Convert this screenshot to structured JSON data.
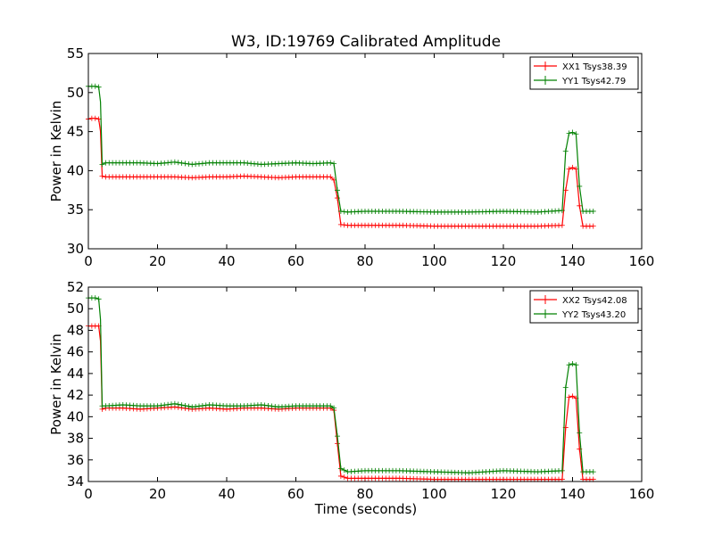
{
  "figure": {
    "title": "W3, ID:19769 Calibrated Amplitude",
    "xlabel": "Time (seconds)"
  },
  "colors": {
    "XX": "#ff0000",
    "YY": "#008000"
  },
  "chart_data": [
    {
      "type": "line",
      "title": "W3, ID:19769 Calibrated Amplitude",
      "xlabel": "",
      "ylabel": "Power in Kelvin",
      "xlim": [
        0,
        160
      ],
      "ylim": [
        30,
        55
      ],
      "xticks": [
        "0",
        "20",
        "40",
        "60",
        "80",
        "100",
        "120",
        "140",
        "160"
      ],
      "yticks": [
        "30",
        "35",
        "40",
        "45",
        "50",
        "55"
      ],
      "grid": false,
      "legend_position": "top-right",
      "series": [
        {
          "name": "XX1 Tsys38.39",
          "color": "#ff0000",
          "x": [
            0,
            1,
            2,
            3,
            3.5,
            4,
            5,
            10,
            15,
            20,
            25,
            30,
            35,
            40,
            45,
            50,
            55,
            60,
            65,
            70,
            71,
            72,
            73,
            75,
            80,
            90,
            100,
            110,
            120,
            130,
            137,
            138,
            139,
            140,
            141,
            142,
            143,
            144,
            146
          ],
          "y": [
            46.6,
            46.7,
            46.7,
            46.6,
            45.0,
            39.3,
            39.2,
            39.2,
            39.2,
            39.2,
            39.2,
            39.1,
            39.2,
            39.2,
            39.3,
            39.2,
            39.1,
            39.2,
            39.2,
            39.2,
            38.8,
            36.5,
            33.1,
            33.0,
            33.0,
            33.0,
            32.9,
            32.9,
            32.9,
            32.9,
            33.0,
            37.5,
            40.2,
            40.4,
            40.2,
            35.5,
            32.9,
            32.9,
            32.9
          ]
        },
        {
          "name": "YY1 Tsys42.79",
          "color": "#008000",
          "x": [
            0,
            1,
            2,
            3,
            3.5,
            4,
            5,
            10,
            15,
            20,
            25,
            30,
            35,
            40,
            45,
            50,
            55,
            60,
            65,
            70,
            71,
            72,
            73,
            75,
            80,
            90,
            100,
            110,
            120,
            130,
            137,
            138,
            139,
            140,
            141,
            142,
            143,
            144,
            146
          ],
          "y": [
            50.8,
            50.8,
            50.8,
            50.7,
            48.8,
            40.8,
            41.0,
            41.0,
            41.0,
            40.9,
            41.1,
            40.8,
            41.0,
            41.0,
            41.0,
            40.8,
            40.9,
            41.0,
            40.9,
            41.0,
            40.9,
            37.5,
            34.8,
            34.7,
            34.8,
            34.8,
            34.7,
            34.7,
            34.8,
            34.7,
            34.9,
            42.5,
            44.8,
            44.9,
            44.7,
            38.0,
            34.8,
            34.8,
            34.8
          ]
        }
      ]
    },
    {
      "type": "line",
      "title": "",
      "xlabel": "Time (seconds)",
      "ylabel": "Power in Kelvin",
      "xlim": [
        0,
        160
      ],
      "ylim": [
        34,
        52
      ],
      "xticks": [
        "0",
        "20",
        "40",
        "60",
        "80",
        "100",
        "120",
        "140",
        "160"
      ],
      "yticks": [
        "34",
        "36",
        "38",
        "40",
        "42",
        "44",
        "46",
        "48",
        "50",
        "52"
      ],
      "grid": false,
      "legend_position": "top-right",
      "series": [
        {
          "name": "XX2 Tsys42.08",
          "color": "#ff0000",
          "x": [
            0,
            1,
            2,
            3,
            3.5,
            4,
            5,
            10,
            15,
            20,
            25,
            30,
            35,
            40,
            45,
            50,
            55,
            60,
            65,
            70,
            71,
            72,
            73,
            75,
            80,
            90,
            100,
            110,
            120,
            130,
            137,
            138,
            139,
            140,
            141,
            142,
            143,
            144,
            146
          ],
          "y": [
            48.4,
            48.4,
            48.4,
            48.4,
            47.0,
            40.7,
            40.8,
            40.8,
            40.7,
            40.8,
            40.9,
            40.7,
            40.8,
            40.7,
            40.8,
            40.8,
            40.7,
            40.8,
            40.8,
            40.8,
            40.6,
            37.5,
            34.5,
            34.3,
            34.3,
            34.3,
            34.2,
            34.2,
            34.2,
            34.2,
            34.2,
            39.0,
            41.8,
            41.9,
            41.7,
            37.0,
            34.2,
            34.2,
            34.2
          ]
        },
        {
          "name": "YY2 Tsys43.20",
          "color": "#008000",
          "x": [
            0,
            1,
            2,
            3,
            3.5,
            4,
            5,
            10,
            15,
            20,
            25,
            30,
            35,
            40,
            45,
            50,
            55,
            60,
            65,
            70,
            71,
            72,
            73,
            75,
            80,
            90,
            100,
            110,
            120,
            130,
            137,
            138,
            139,
            140,
            141,
            142,
            143,
            144,
            146
          ],
          "y": [
            51.0,
            51.0,
            51.0,
            50.9,
            49.0,
            41.0,
            41.0,
            41.1,
            41.0,
            41.0,
            41.2,
            40.9,
            41.1,
            41.0,
            41.0,
            41.1,
            40.9,
            41.0,
            41.0,
            41.0,
            40.8,
            38.2,
            35.2,
            34.9,
            35.0,
            35.0,
            34.9,
            34.8,
            35.0,
            34.9,
            35.0,
            42.7,
            44.8,
            44.9,
            44.8,
            38.5,
            34.9,
            34.9,
            34.9
          ]
        }
      ]
    }
  ]
}
